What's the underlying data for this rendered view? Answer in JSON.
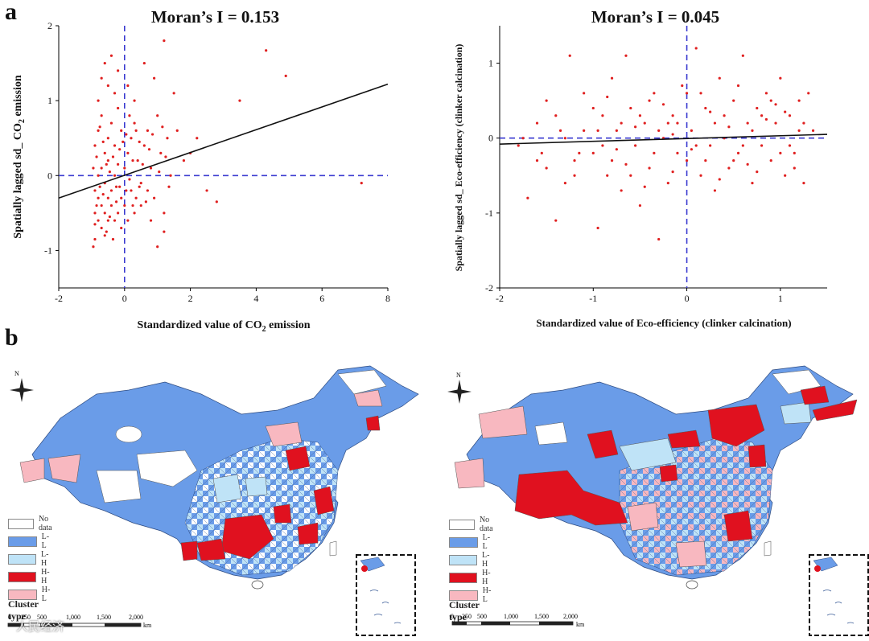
{
  "panels": {
    "a": "a",
    "b": "b"
  },
  "chart_data": [
    {
      "type": "scatter",
      "title": "Moran’s I = 0.153",
      "xlabel_pre": "Standardized value of CO",
      "xlabel_sub": "2",
      "xlabel_post": " emission",
      "ylabel_pre": "Spatially lagged sd_ CO",
      "ylabel_sub": "2",
      "ylabel_post": " emission",
      "xlim": [
        -2,
        8
      ],
      "ylim": [
        -1.5,
        2
      ],
      "xticks": [
        -2,
        0,
        2,
        4,
        6,
        8
      ],
      "yticks": [
        -1,
        0,
        1,
        2
      ],
      "fit_line": {
        "x": [
          -2,
          8
        ],
        "y": [
          -0.3,
          1.22
        ]
      },
      "reference_lines": {
        "x": 0,
        "y": 0
      },
      "points": [
        [
          -0.9,
          -0.85
        ],
        [
          -0.8,
          -0.6
        ],
        [
          -0.7,
          -0.4
        ],
        [
          -0.6,
          -0.5
        ],
        [
          -0.5,
          -0.3
        ],
        [
          -0.9,
          -0.2
        ],
        [
          -0.8,
          0.0
        ],
        [
          -0.7,
          0.1
        ],
        [
          -0.6,
          -0.1
        ],
        [
          -0.5,
          0.2
        ],
        [
          -0.4,
          -0.2
        ],
        [
          -0.3,
          0.0
        ],
        [
          -0.2,
          0.15
        ],
        [
          -0.1,
          -0.3
        ],
        [
          0.0,
          0.1
        ],
        [
          -0.9,
          0.4
        ],
        [
          -0.8,
          0.6
        ],
        [
          -0.7,
          0.8
        ],
        [
          -0.6,
          0.3
        ],
        [
          -0.5,
          0.5
        ],
        [
          -0.4,
          0.7
        ],
        [
          -0.3,
          0.4
        ],
        [
          -0.2,
          0.9
        ],
        [
          -0.1,
          0.6
        ],
        [
          0.1,
          0.3
        ],
        [
          0.2,
          0.5
        ],
        [
          0.3,
          0.7
        ],
        [
          0.4,
          0.2
        ],
        [
          0.5,
          -0.1
        ],
        [
          0.6,
          0.4
        ],
        [
          0.7,
          0.6
        ],
        [
          0.8,
          0.1
        ],
        [
          0.9,
          -0.3
        ],
        [
          1.0,
          0.8
        ],
        [
          1.1,
          0.3
        ],
        [
          1.2,
          -0.5
        ],
        [
          1.3,
          0.5
        ],
        [
          1.4,
          0.0
        ],
        [
          -0.9,
          -0.5
        ],
        [
          -0.8,
          -0.3
        ],
        [
          -0.7,
          -0.7
        ],
        [
          -0.6,
          -0.8
        ],
        [
          -0.5,
          -0.6
        ],
        [
          -0.4,
          -0.4
        ],
        [
          -0.3,
          -0.6
        ],
        [
          -0.2,
          -0.5
        ],
        [
          -0.1,
          -0.7
        ],
        [
          0.0,
          -0.4
        ],
        [
          0.1,
          -0.6
        ],
        [
          0.2,
          -0.2
        ],
        [
          0.3,
          -0.5
        ],
        [
          0.5,
          -0.4
        ],
        [
          0.7,
          -0.2
        ],
        [
          0.8,
          -0.6
        ],
        [
          -0.8,
          1.0
        ],
        [
          -0.7,
          1.3
        ],
        [
          -0.6,
          1.5
        ],
        [
          -0.5,
          1.2
        ],
        [
          -0.4,
          1.6
        ],
        [
          -0.3,
          1.1
        ],
        [
          -0.2,
          1.4
        ],
        [
          0.1,
          1.2
        ],
        [
          0.3,
          1.0
        ],
        [
          0.6,
          1.5
        ],
        [
          0.9,
          1.3
        ],
        [
          1.2,
          1.8
        ],
        [
          1.5,
          1.1
        ],
        [
          2.0,
          0.3
        ],
        [
          2.2,
          0.5
        ],
        [
          2.5,
          -0.2
        ],
        [
          2.8,
          -0.35
        ],
        [
          3.5,
          1.0
        ],
        [
          4.3,
          1.67
        ],
        [
          4.9,
          1.33
        ],
        [
          7.2,
          -0.1
        ],
        [
          1.0,
          -0.95
        ],
        [
          1.2,
          -0.75
        ],
        [
          -0.95,
          -0.95
        ],
        [
          -0.85,
          -0.4
        ],
        [
          -0.65,
          -0.25
        ],
        [
          -0.45,
          0.05
        ],
        [
          -0.35,
          0.25
        ],
        [
          -0.25,
          -0.15
        ],
        [
          -0.15,
          0.35
        ],
        [
          0.05,
          0.55
        ],
        [
          0.15,
          -0.05
        ],
        [
          0.25,
          0.2
        ],
        [
          0.35,
          -0.3
        ],
        [
          0.45,
          0.45
        ],
        [
          0.55,
          0.15
        ],
        [
          0.65,
          -0.35
        ],
        [
          0.75,
          0.35
        ],
        [
          0.85,
          0.55
        ],
        [
          1.05,
          0.05
        ],
        [
          1.15,
          0.65
        ],
        [
          1.25,
          0.25
        ],
        [
          1.35,
          -0.15
        ],
        [
          1.6,
          0.6
        ],
        [
          1.8,
          0.2
        ],
        [
          -0.75,
          -0.15
        ],
        [
          -0.55,
          0.15
        ],
        [
          -0.65,
          0.45
        ],
        [
          -0.85,
          0.25
        ],
        [
          -0.45,
          -0.55
        ],
        [
          -0.35,
          -0.85
        ],
        [
          -0.25,
          -0.35
        ],
        [
          -0.15,
          -0.15
        ],
        [
          -0.05,
          0.45
        ],
        [
          0.05,
          -0.2
        ],
        [
          0.15,
          0.8
        ],
        [
          0.25,
          -0.4
        ],
        [
          0.35,
          0.6
        ],
        [
          0.45,
          -0.15
        ],
        [
          -0.95,
          0.1
        ],
        [
          -0.9,
          -0.65
        ],
        [
          -0.75,
          0.65
        ],
        [
          -0.55,
          -0.75
        ]
      ]
    },
    {
      "type": "scatter",
      "title": "Moran’s I = 0.045",
      "xlabel": "Standardized value of Eco-efficiency (clinker calcination)",
      "ylabel": "Spatially lagged sd_ Eco-efficiency (clinker calcination)",
      "xlim": [
        -2,
        1.5
      ],
      "ylim": [
        -2,
        1.5
      ],
      "xticks": [
        -2,
        -1,
        0,
        1
      ],
      "yticks": [
        -2,
        -1,
        0,
        1
      ],
      "fit_line": {
        "x": [
          -2,
          1.5
        ],
        "y": [
          -0.08,
          0.05
        ]
      },
      "reference_lines": {
        "x": 0,
        "y": 0
      },
      "points": [
        [
          -1.8,
          -0.1
        ],
        [
          -1.7,
          -0.8
        ],
        [
          -1.6,
          0.2
        ],
        [
          -1.5,
          -0.4
        ],
        [
          -1.4,
          -1.1
        ],
        [
          -1.3,
          0.0
        ],
        [
          -1.25,
          1.1
        ],
        [
          -1.2,
          -0.3
        ],
        [
          -1.1,
          0.6
        ],
        [
          -1.0,
          -0.2
        ],
        [
          -0.95,
          -1.2
        ],
        [
          -0.9,
          0.3
        ],
        [
          -0.85,
          -0.5
        ],
        [
          -0.8,
          0.8
        ],
        [
          -0.75,
          0.1
        ],
        [
          -0.7,
          -0.7
        ],
        [
          -0.65,
          1.1
        ],
        [
          -0.6,
          0.4
        ],
        [
          -0.55,
          -0.1
        ],
        [
          -0.5,
          -0.9
        ],
        [
          -0.45,
          0.2
        ],
        [
          -0.4,
          -0.4
        ],
        [
          -0.35,
          0.6
        ],
        [
          -0.3,
          -1.35
        ],
        [
          -0.25,
          0.0
        ],
        [
          -0.2,
          -0.6
        ],
        [
          -0.15,
          0.3
        ],
        [
          -0.1,
          -0.2
        ],
        [
          -0.05,
          0.7
        ],
        [
          0.0,
          -0.3
        ],
        [
          0.05,
          0.1
        ],
        [
          0.1,
          1.2
        ],
        [
          0.15,
          -0.5
        ],
        [
          0.2,
          0.4
        ],
        [
          0.25,
          -0.1
        ],
        [
          0.3,
          -0.7
        ],
        [
          0.35,
          0.8
        ],
        [
          0.4,
          0.0
        ],
        [
          0.45,
          -0.4
        ],
        [
          0.5,
          0.5
        ],
        [
          0.55,
          -0.2
        ],
        [
          0.6,
          1.1
        ],
        [
          0.65,
          0.2
        ],
        [
          0.7,
          -0.6
        ],
        [
          0.75,
          0.4
        ],
        [
          0.8,
          -0.1
        ],
        [
          0.85,
          0.6
        ],
        [
          0.9,
          -0.3
        ],
        [
          0.95,
          0.2
        ],
        [
          1.0,
          0.8
        ],
        [
          1.05,
          -0.5
        ],
        [
          1.1,
          0.3
        ],
        [
          1.15,
          -0.2
        ],
        [
          1.2,
          0.5
        ],
        [
          1.25,
          -0.6
        ],
        [
          1.3,
          0.6
        ],
        [
          1.35,
          0.1
        ],
        [
          -1.5,
          0.5
        ],
        [
          -1.3,
          -0.6
        ],
        [
          -1.1,
          0.1
        ],
        [
          -0.9,
          -0.1
        ],
        [
          -0.7,
          0.2
        ],
        [
          -0.5,
          0.3
        ],
        [
          -0.3,
          0.1
        ],
        [
          -0.1,
          0.2
        ],
        [
          0.1,
          -0.1
        ],
        [
          0.3,
          0.2
        ],
        [
          0.5,
          -0.3
        ],
        [
          0.7,
          0.1
        ],
        [
          0.9,
          0.5
        ],
        [
          1.1,
          -0.1
        ],
        [
          -1.6,
          -0.3
        ],
        [
          -1.4,
          0.3
        ],
        [
          -1.2,
          -0.5
        ],
        [
          -1.0,
          0.4
        ],
        [
          -0.8,
          -0.3
        ],
        [
          -0.6,
          -0.5
        ],
        [
          -0.4,
          0.5
        ],
        [
          -0.2,
          0.2
        ],
        [
          0.0,
          0.6
        ],
        [
          0.2,
          -0.3
        ],
        [
          0.4,
          0.3
        ],
        [
          0.6,
          -0.1
        ],
        [
          0.8,
          0.3
        ],
        [
          1.0,
          -0.2
        ],
        [
          1.2,
          0.1
        ],
        [
          -1.75,
          0.0
        ],
        [
          -1.55,
          -0.2
        ],
        [
          -1.35,
          0.1
        ],
        [
          -1.15,
          -0.2
        ],
        [
          -0.95,
          0.1
        ],
        [
          -0.75,
          -0.15
        ],
        [
          -0.55,
          0.15
        ],
        [
          -0.35,
          -0.2
        ],
        [
          -0.15,
          0.05
        ],
        [
          0.05,
          -0.15
        ],
        [
          0.25,
          0.35
        ],
        [
          0.45,
          0.15
        ],
        [
          0.65,
          -0.35
        ],
        [
          0.85,
          0.25
        ],
        [
          1.05,
          0.35
        ],
        [
          1.25,
          0.2
        ],
        [
          -0.45,
          -0.65
        ],
        [
          -0.25,
          0.45
        ],
        [
          0.15,
          0.6
        ],
        [
          0.55,
          0.7
        ],
        [
          0.95,
          0.45
        ],
        [
          -0.85,
          0.55
        ],
        [
          -0.65,
          -0.35
        ],
        [
          -0.15,
          -0.45
        ],
        [
          0.35,
          -0.55
        ],
        [
          0.75,
          -0.45
        ],
        [
          1.15,
          -0.4
        ]
      ]
    }
  ],
  "maps": [
    {
      "legend": {
        "items": [
          {
            "label": "No data",
            "color": "#ffffff"
          },
          {
            "label": "L-L",
            "color": "#6a9ce8"
          },
          {
            "label": "L-H",
            "color": "#bfe3f7"
          },
          {
            "label": "H-H",
            "color": "#e0111f"
          },
          {
            "label": "H-L",
            "color": "#f8b8c0"
          }
        ],
        "title": "Cluster type"
      },
      "scale": {
        "ticks": [
          "0",
          "250",
          "500",
          "1,000",
          "1,500",
          "2,000"
        ],
        "unit": "km"
      },
      "north": "N"
    },
    {
      "legend": {
        "items": [
          {
            "label": "No data",
            "color": "#ffffff"
          },
          {
            "label": "L-L",
            "color": "#6a9ce8"
          },
          {
            "label": "L-H",
            "color": "#bfe3f7"
          },
          {
            "label": "H-H",
            "color": "#e0111f"
          },
          {
            "label": "H-L",
            "color": "#f8b8c0"
          }
        ],
        "title": "Cluster type"
      },
      "scale": {
        "ticks": [
          "0",
          "250",
          "500",
          "1,000",
          "1,500",
          "2,000"
        ],
        "unit": "km"
      },
      "north": "N"
    }
  ],
  "watermark": "人民经济"
}
